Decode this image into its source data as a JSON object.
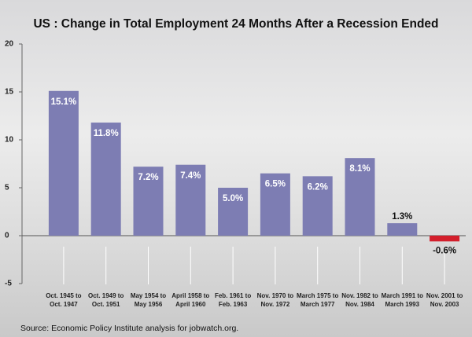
{
  "chart_data": {
    "type": "bar",
    "title": "US : Change in Total Employment 24 Months After a Recession Ended",
    "categories": [
      "Oct. 1945 to\nOct. 1947",
      "Oct. 1949 to\nOct. 1951",
      "May 1954 to\nMay 1956",
      "April 1958 to\nApril 1960",
      "Feb. 1961 to\nFeb. 1963",
      "Nov. 1970 to\nNov. 1972",
      "March 1975 to\nMarch 1977",
      "Nov. 1982 to\nNov. 1984",
      "March 1991 to\nMarch 1993",
      "Nov. 2001 to\nNov. 2003"
    ],
    "values": [
      15.1,
      11.8,
      7.2,
      7.4,
      5.0,
      6.5,
      6.2,
      8.1,
      1.3,
      -0.6
    ],
    "value_labels": [
      "15.1%",
      "11.8%",
      "7.2%",
      "7.4%",
      "5.0%",
      "6.5%",
      "6.2%",
      "8.1%",
      "1.3%",
      "-0.6%"
    ],
    "colors": [
      "#7d7db3",
      "#7d7db3",
      "#7d7db3",
      "#7d7db3",
      "#7d7db3",
      "#7d7db3",
      "#7d7db3",
      "#7d7db3",
      "#7d7db3",
      "#d31f2c"
    ],
    "ylim": [
      -5,
      20
    ],
    "yticks": [
      -5,
      0,
      5,
      10,
      15,
      20
    ],
    "source": "Source: Economic Policy Institute analysis for jobwatch.org."
  }
}
